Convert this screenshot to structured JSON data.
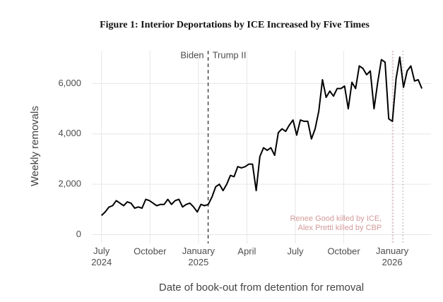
{
  "chart_data": {
    "type": "line",
    "title": "Figure 1: Interior Deportations by ICE Increased by Five Times",
    "x_label": "Date of book-out from detention for removal",
    "y_label": "Weekly removals",
    "xlim": [
      2024.45,
      2026.2
    ],
    "ylim": [
      -350,
      7300
    ],
    "xticks": [
      {
        "value": 2024.5,
        "label": "July\n2024"
      },
      {
        "value": 2024.75,
        "label": "October"
      },
      {
        "value": 2025.0,
        "label": "January\n2025"
      },
      {
        "value": 2025.25,
        "label": "April"
      },
      {
        "value": 2025.5,
        "label": "July"
      },
      {
        "value": 2025.75,
        "label": "October"
      },
      {
        "value": 2026.0,
        "label": "January\n2026"
      }
    ],
    "yticks": [
      0,
      {
        "value": 2000,
        "label": "2,000"
      },
      {
        "value": 4000,
        "label": "4,000"
      },
      {
        "value": 6000,
        "label": "6,000"
      }
    ],
    "grid": true,
    "x": [
      2024.5,
      2024.519,
      2024.538,
      2024.557,
      2024.576,
      2024.595,
      2024.614,
      2024.633,
      2024.652,
      2024.671,
      2024.69,
      2024.709,
      2024.728,
      2024.747,
      2024.766,
      2024.785,
      2024.804,
      2024.823,
      2024.842,
      2024.861,
      2024.88,
      2024.899,
      2024.918,
      2024.937,
      2024.956,
      2024.975,
      2024.994,
      2025.013,
      2025.032,
      2025.051,
      2025.07,
      2025.089,
      2025.108,
      2025.127,
      2025.146,
      2025.165,
      2025.184,
      2025.203,
      2025.222,
      2025.241,
      2025.26,
      2025.279,
      2025.298,
      2025.317,
      2025.336,
      2025.355,
      2025.374,
      2025.393,
      2025.412,
      2025.431,
      2025.45,
      2025.469,
      2025.488,
      2025.507,
      2025.526,
      2025.545,
      2025.564,
      2025.583,
      2025.602,
      2025.621,
      2025.64,
      2025.659,
      2025.678,
      2025.697,
      2025.716,
      2025.735,
      2025.754,
      2025.773,
      2025.792,
      2025.811,
      2025.83,
      2025.849,
      2025.868,
      2025.887,
      2025.906,
      2025.925,
      2025.944,
      2025.963,
      2025.982,
      2026.001,
      2026.02,
      2026.039,
      2026.058,
      2026.077,
      2026.096,
      2026.115,
      2026.134,
      2026.153
    ],
    "series": [
      {
        "name": "Weekly removals",
        "color": "#000000",
        "values": [
          760,
          900,
          1090,
          1150,
          1350,
          1250,
          1150,
          1300,
          1250,
          1050,
          1100,
          1050,
          1400,
          1350,
          1250,
          1150,
          1200,
          1200,
          1400,
          1200,
          1350,
          1400,
          1100,
          1200,
          1250,
          1100,
          900,
          1200,
          1150,
          1200,
          1500,
          1900,
          2000,
          1750,
          2000,
          2350,
          2300,
          2700,
          2650,
          2700,
          2800,
          2800,
          1750,
          3100,
          3450,
          3350,
          3450,
          3150,
          4050,
          4200,
          4100,
          4350,
          4550,
          3950,
          4550,
          4500,
          4500,
          3800,
          4200,
          4900,
          6150,
          5450,
          5700,
          5500,
          5800,
          5800,
          5900,
          5000,
          6050,
          5800,
          6700,
          6600,
          6350,
          6500,
          5000,
          6050,
          6950,
          6850,
          4600,
          4500,
          6200,
          7050,
          5850,
          6500,
          6700,
          6100,
          6150,
          5800
        ]
      }
    ],
    "reference_lines": [
      {
        "x": 2025.05,
        "style": "dashed",
        "color": "#333333"
      },
      {
        "x": 2026.004,
        "style": "dotted",
        "color": "#c8909a"
      },
      {
        "x": 2026.055,
        "style": "dotted",
        "color": "#a0a0a0"
      }
    ],
    "annotations": [
      "Biden",
      "Trump II",
      "Renee Good killed by ICE,",
      "Alex Pretti killed by CBP"
    ],
    "annotation_color": "#d49a9a"
  }
}
